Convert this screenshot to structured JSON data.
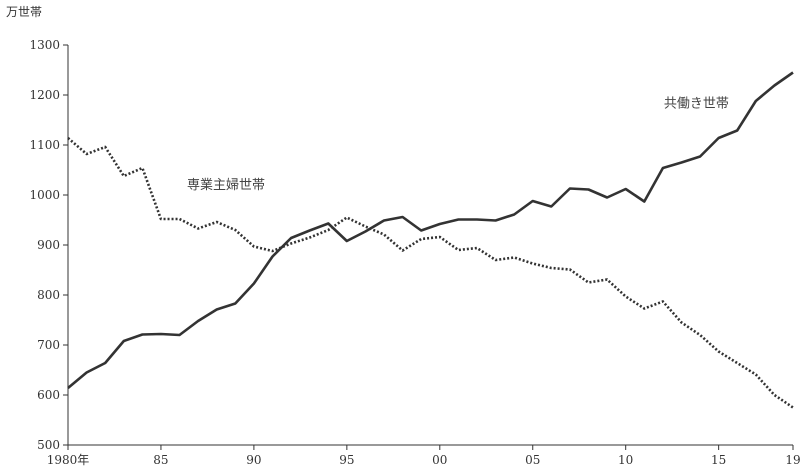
{
  "chart_data": {
    "type": "line",
    "unit_label": "万世帯",
    "ylim": [
      500,
      1300
    ],
    "yticks": [
      500,
      600,
      700,
      800,
      900,
      1000,
      1100,
      1200,
      1300
    ],
    "xlim": [
      1980,
      2019
    ],
    "xticks": [
      {
        "x": 1980,
        "label": "1980年"
      },
      {
        "x": 1985,
        "label": "85"
      },
      {
        "x": 1990,
        "label": "90"
      },
      {
        "x": 1995,
        "label": "95"
      },
      {
        "x": 2000,
        "label": "00"
      },
      {
        "x": 2005,
        "label": "05"
      },
      {
        "x": 2010,
        "label": "10"
      },
      {
        "x": 2015,
        "label": "15"
      },
      {
        "x": 2019,
        "label": "19"
      }
    ],
    "grid": false,
    "x": [
      1980,
      1981,
      1982,
      1983,
      1984,
      1985,
      1986,
      1987,
      1988,
      1989,
      1990,
      1991,
      1992,
      1993,
      1994,
      1995,
      1996,
      1997,
      1998,
      1999,
      2000,
      2001,
      2002,
      2003,
      2004,
      2005,
      2006,
      2007,
      2008,
      2009,
      2010,
      2011,
      2012,
      2013,
      2014,
      2015,
      2016,
      2017,
      2018,
      2019
    ],
    "series": [
      {
        "name": "共働き世帯",
        "style": "solid",
        "color": "#333333",
        "values": [
          614,
          645,
          664,
          708,
          721,
          722,
          720,
          748,
          771,
          783,
          823,
          877,
          914,
          929,
          943,
          908,
          927,
          949,
          956,
          929,
          942,
          951,
          951,
          949,
          961,
          988,
          977,
          1013,
          1011,
          995,
          1012,
          987,
          1054,
          1065,
          1077,
          1114,
          1129,
          1188,
          1219,
          1245
        ]
      },
      {
        "name": "専業主婦世帯",
        "style": "dotted",
        "color": "#333333",
        "values": [
          1114,
          1082,
          1096,
          1038,
          1054,
          952,
          952,
          933,
          946,
          930,
          897,
          888,
          903,
          915,
          930,
          955,
          937,
          921,
          889,
          912,
          916,
          890,
          894,
          870,
          875,
          863,
          854,
          851,
          825,
          831,
          797,
          773,
          787,
          745,
          720,
          687,
          664,
          641,
          600,
          575
        ]
      }
    ]
  }
}
